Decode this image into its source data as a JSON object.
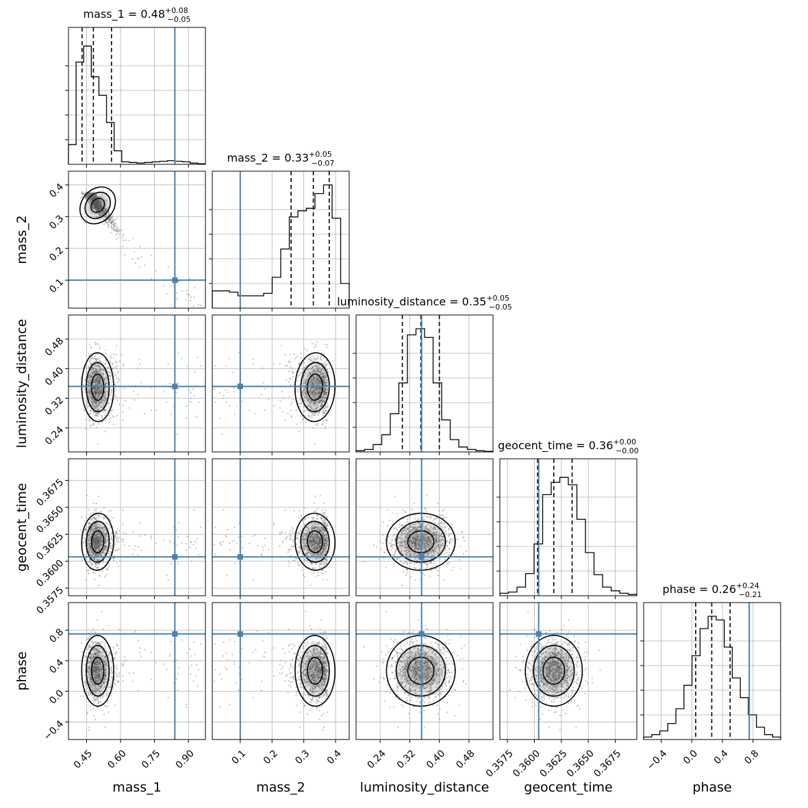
{
  "chart_data": {
    "type": "corner",
    "parameters": [
      {
        "name": "mass_1",
        "axis_label": "mass_1",
        "range": [
          0.37,
          0.975
        ],
        "ticks": [
          0.45,
          0.6,
          0.75,
          0.9
        ],
        "tick_labels": [
          "0.45",
          "0.60",
          "0.75",
          "0.90"
        ],
        "title": {
          "prefix": "mass_1 = 0.48",
          "sup": "+0.08",
          "sub": "−0.05"
        },
        "median": 0.48,
        "q_low": 0.43,
        "q_high": 0.56,
        "injection": 0.84,
        "hist": [
          0.16,
          0.83,
          0.96,
          0.71,
          0.56,
          0.34,
          0.11,
          0.02,
          0.015,
          0.01,
          0.015,
          0.02,
          0.025,
          0.03,
          0.025,
          0.02,
          0.01,
          0.005
        ]
      },
      {
        "name": "mass_2",
        "axis_label": "mass_2",
        "range": [
          0.012,
          0.443
        ],
        "ticks": [
          0.1,
          0.2,
          0.3,
          0.4
        ],
        "tick_labels": [
          "0.1",
          "0.2",
          "0.3",
          "0.4"
        ],
        "title": {
          "prefix": "mass_2 = 0.33",
          "sup": "+0.05",
          "sub": "−0.07"
        },
        "median": 0.33,
        "q_low": 0.26,
        "q_high": 0.38,
        "injection": 0.1,
        "hist": [
          0.14,
          0.14,
          0.13,
          0.1,
          0.1,
          0.1,
          0.12,
          0.25,
          0.48,
          0.74,
          0.79,
          0.81,
          0.93,
          1.0,
          0.73,
          0.2
        ]
      },
      {
        "name": "luminosity_distance",
        "axis_label": "luminosity_distance",
        "range": [
          0.175,
          0.545
        ],
        "ticks": [
          0.24,
          0.32,
          0.4,
          0.48
        ],
        "tick_labels": [
          "0.24",
          "0.32",
          "0.40",
          "0.48"
        ],
        "title": {
          "prefix": "luminosity_distance = 0.35",
          "sup": "+0.05",
          "sub": "−0.05"
        },
        "median": 0.35,
        "q_low": 0.3,
        "q_high": 0.4,
        "injection": 0.352,
        "hist": [
          0.01,
          0.02,
          0.06,
          0.14,
          0.31,
          0.56,
          0.95,
          1.0,
          0.93,
          0.56,
          0.26,
          0.1,
          0.04,
          0.02,
          0.01,
          0.005
        ]
      },
      {
        "name": "geocent_time",
        "axis_label": "geocent_time",
        "range": [
          0.3568,
          0.3695
        ],
        "ticks": [
          0.3575,
          0.36,
          0.3625,
          0.365,
          0.3675
        ],
        "tick_labels": [
          "0.3575",
          "0.3600",
          "0.3625",
          "0.3650",
          "0.3675"
        ],
        "title": {
          "prefix": "geocent_time = 0.36",
          "sup": "+0.00",
          "sub": "−0.00"
        },
        "median": 0.3618,
        "q_low": 0.3603,
        "q_high": 0.3635,
        "injection": 0.3604,
        "hist": [
          0.02,
          0.03,
          0.07,
          0.18,
          0.42,
          0.82,
          0.92,
          0.96,
          0.9,
          0.62,
          0.35,
          0.17,
          0.07,
          0.04,
          0.02,
          0.01
        ]
      },
      {
        "name": "phase",
        "axis_label": "phase",
        "range": [
          -0.63,
          1.16
        ],
        "ticks": [
          -0.4,
          0.0,
          0.4,
          0.8
        ],
        "tick_labels": [
          "−0.4",
          "0.0",
          "0.4",
          "0.8"
        ],
        "title": {
          "prefix": "phase = 0.26",
          "sup": "+0.24",
          "sub": "−0.21"
        },
        "median": 0.26,
        "q_low": 0.05,
        "q_high": 0.5,
        "injection": 0.75,
        "hist": [
          0.02,
          0.04,
          0.07,
          0.13,
          0.25,
          0.44,
          0.68,
          0.9,
          1.0,
          0.97,
          0.75,
          0.5,
          0.34,
          0.2,
          0.1,
          0.04,
          0.02
        ]
      }
    ],
    "injection_color": "#4682b4",
    "hist_color": "#000000",
    "grid": true
  }
}
